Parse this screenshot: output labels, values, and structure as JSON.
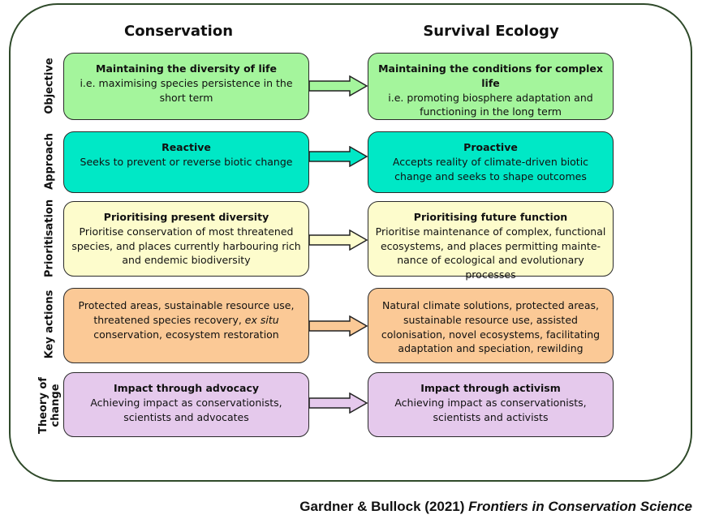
{
  "headers": {
    "left": "Conservation",
    "right": "Survival Ecology"
  },
  "rows": [
    {
      "label": "Objective",
      "color": "#a4f59c",
      "left": {
        "title": "Maintaining the diversity of life",
        "body": "i.e. maximising species persistence in the short term"
      },
      "right": {
        "title": "Maintaining the conditions for complex life",
        "body": "i.e. promoting biosphere adaptation and functioning in the long term"
      }
    },
    {
      "label": "Approach",
      "color": "#00e8c6",
      "left": {
        "title": "Reactive",
        "body": "Seeks to prevent or reverse biotic change"
      },
      "right": {
        "title": "Proactive",
        "body": "Accepts reality of climate-driven biotic change and seeks to shape outcomes"
      }
    },
    {
      "label": "Prioritisation",
      "color": "#fdfccc",
      "left": {
        "title": "Prioritising present diversity",
        "body": "Prioritise conservation of most threatened species, and places currently harbouring rich and endemic biodiversity"
      },
      "right": {
        "title": "Prioritising future function",
        "body": "Prioritise maintenance of complex, functional ecosystems, and places permitting mainte-nance of ecological and evolutionary processes"
      }
    },
    {
      "label": "Key actions",
      "color": "#fbc996",
      "left": {
        "title": "",
        "body_pre": "Protected areas, sustainable resource use, threatened species recovery, ",
        "body_italic": "ex situ",
        "body_post": " conservation, ecosystem restoration"
      },
      "right": {
        "title": "",
        "body": "Natural climate solutions, protected areas, sustainable resource use, assisted colonisation, novel ecosystems, facilitating adaptation and speciation, rewilding"
      }
    },
    {
      "label": "Theory of change",
      "color": "#e5c9ec",
      "left": {
        "title": "Impact through advocacy",
        "body": "Achieving impact as conservationists, scientists and advocates"
      },
      "right": {
        "title": "Impact through activism",
        "body": "Achieving impact as conservationists, scientists and activists"
      }
    }
  ],
  "footer": {
    "authors": "Gardner & Bullock (2021) ",
    "journal": "Frontiers in Conservation Science"
  }
}
